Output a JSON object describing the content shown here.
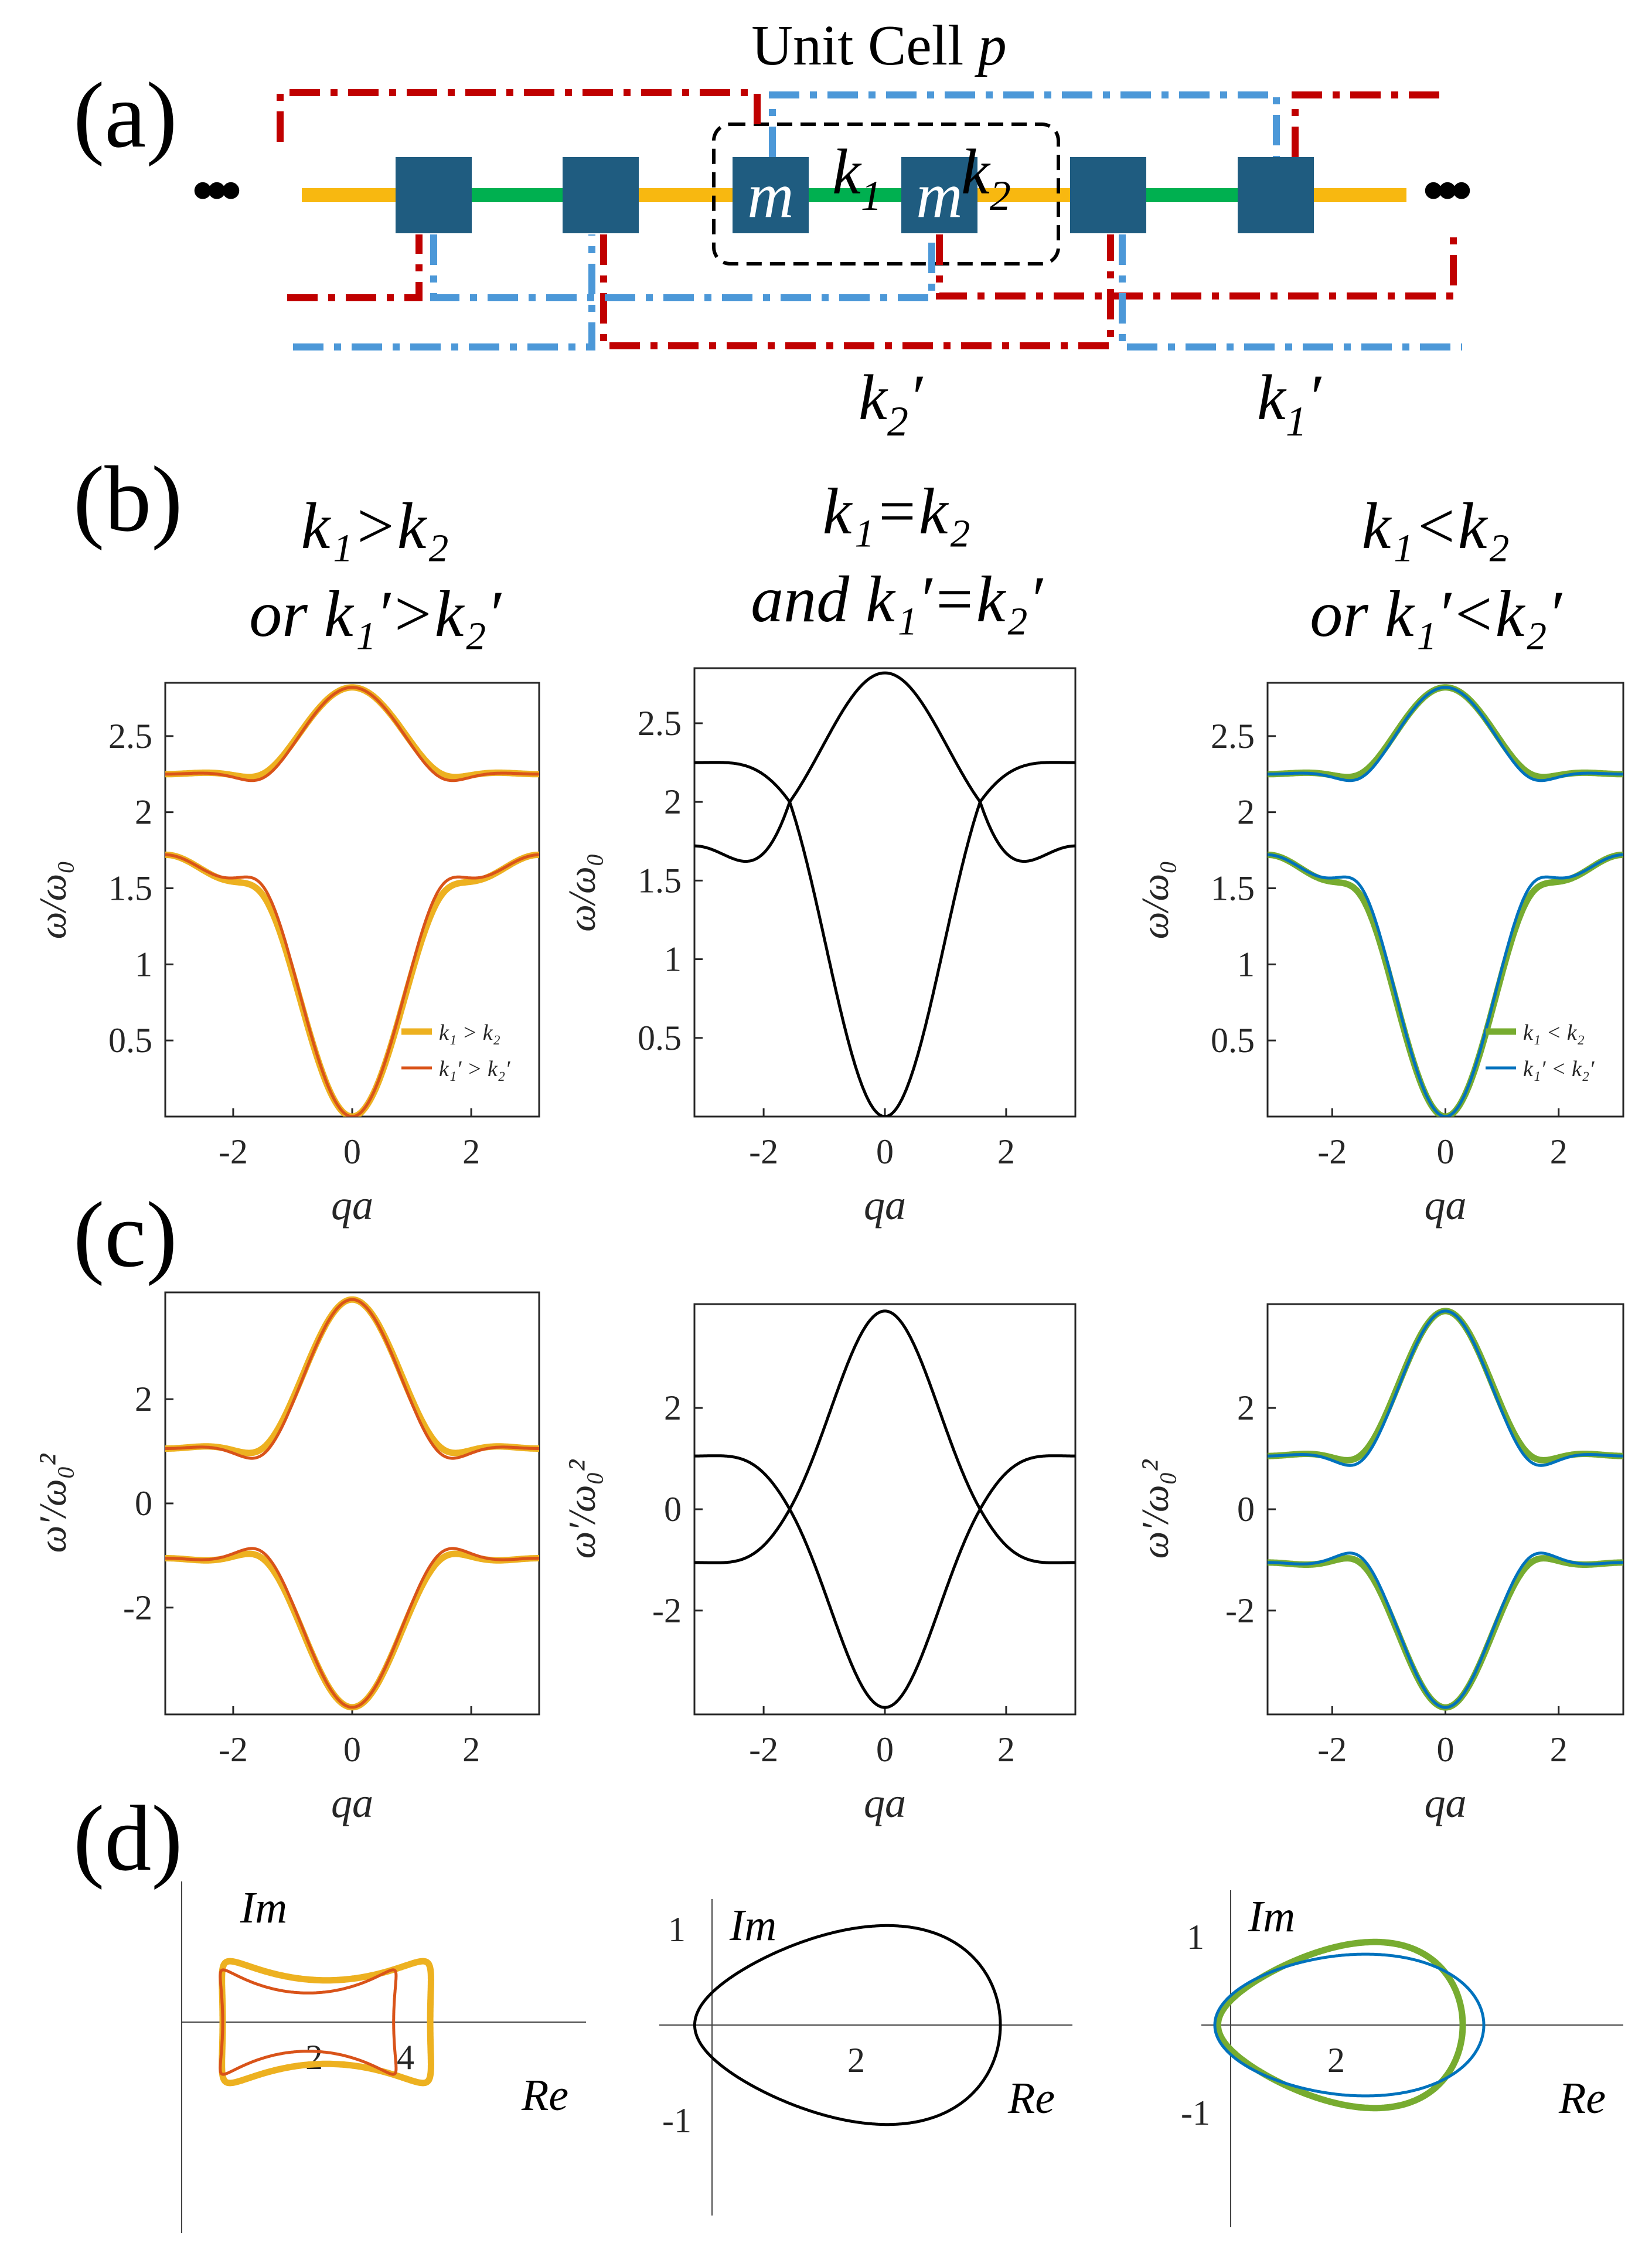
{
  "panel_labels": [
    "(a)",
    "(b)",
    "(c)",
    "(d)"
  ],
  "diagram": {
    "title_text": "Unit Cell ",
    "title_var": "p",
    "mass_label": "m",
    "spring_k1": "k",
    "spring_k1_sub": "1",
    "spring_k2": "k",
    "spring_k2_sub": "2",
    "label_k2p": "k",
    "label_k2p_sub": "2",
    "label_k1p": "k",
    "label_k1p_sub": "1",
    "prime": "′",
    "ellipsis_left": "•••",
    "ellipsis_right": "•••",
    "colors": {
      "spring_k1": "#00b050",
      "spring_k2": "#f8b810",
      "mass": "#1f5c80",
      "box_red": "#c00000",
      "box_blue": "#4c98d8",
      "box_black": "#000000"
    }
  },
  "column_headings": [
    {
      "line1": "k₁>k₂",
      "line2": "or k₁′>k₂′"
    },
    {
      "line1": "k₁=k₂",
      "line2": "and k₁′=k₂′"
    },
    {
      "line1": "k₁<k₂",
      "line2": "or k₁′<k₂′"
    }
  ],
  "colors": {
    "yellow": "#edb120",
    "orange": "#d95319",
    "green": "#77ac30",
    "blue": "#0072bd",
    "black": "#000000"
  },
  "chart_data": [
    {
      "panel": "b-left",
      "type": "line",
      "xlabel": "qa",
      "ylabel": "ω/ω₀",
      "xlim": [
        -3.1416,
        3.1416
      ],
      "ylim": [
        0,
        2.85
      ],
      "xticks": [
        -2,
        0,
        2
      ],
      "yticks": [
        0.5,
        1,
        1.5,
        2,
        2.5
      ],
      "model": "dispersion",
      "grid": false,
      "legend_position": "bottom-right",
      "series": [
        {
          "name": "k₁ > k₂",
          "color": "yellow",
          "width": 11,
          "delta": 0.45
        },
        {
          "name": "k₁′ > k₂′",
          "color": "orange",
          "width": 5,
          "delta": 0.4
        }
      ]
    },
    {
      "panel": "b-mid",
      "type": "line",
      "xlabel": "qa",
      "ylabel": "ω/ω₀",
      "xlim": [
        -3.1416,
        3.1416
      ],
      "ylim": [
        0,
        2.85
      ],
      "xticks": [
        -2,
        0,
        2
      ],
      "yticks": [
        0.5,
        1,
        1.5,
        2,
        2.5
      ],
      "model": "dispersion",
      "grid": false,
      "series": [
        {
          "color": "black",
          "width": 5,
          "delta": 0
        }
      ]
    },
    {
      "panel": "b-right",
      "type": "line",
      "xlabel": "qa",
      "ylabel": "ω/ω₀",
      "xlim": [
        -3.1416,
        3.1416
      ],
      "ylim": [
        0,
        2.85
      ],
      "xticks": [
        -2,
        0,
        2
      ],
      "yticks": [
        0.5,
        1,
        1.5,
        2,
        2.5
      ],
      "model": "dispersion",
      "grid": false,
      "legend_position": "bottom-right",
      "series": [
        {
          "name": "k₁ < k₂",
          "color": "green",
          "width": 11,
          "delta": 0.45
        },
        {
          "name": "k₁′ < k₂′",
          "color": "blue",
          "width": 5,
          "delta": 0.4
        }
      ]
    },
    {
      "panel": "c-left",
      "type": "line",
      "xlabel": "qa",
      "ylabel": "ω′/ω₀²",
      "xlim": [
        -3.1416,
        3.1416
      ],
      "ylim": [
        -4.05,
        4.05
      ],
      "xticks": [
        -2,
        0,
        2
      ],
      "yticks": [
        -2,
        0,
        2
      ],
      "model": "shifted",
      "grid": false,
      "series": [
        {
          "color": "yellow",
          "width": 11,
          "delta": 0.45
        },
        {
          "color": "orange",
          "width": 5,
          "delta": 0.4
        }
      ]
    },
    {
      "panel": "c-mid",
      "type": "line",
      "xlabel": "qa",
      "ylabel": "ω′/ω₀²",
      "xlim": [
        -3.1416,
        3.1416
      ],
      "ylim": [
        -4.05,
        4.05
      ],
      "xticks": [
        -2,
        0,
        2
      ],
      "yticks": [
        -2,
        0,
        2
      ],
      "model": "shifted",
      "grid": false,
      "series": [
        {
          "color": "black",
          "width": 5,
          "delta": 0
        }
      ]
    },
    {
      "panel": "c-right",
      "type": "line",
      "xlabel": "qa",
      "ylabel": "ω′/ω₀²",
      "xlim": [
        -3.1416,
        3.1416
      ],
      "ylim": [
        -4.05,
        4.05
      ],
      "xticks": [
        -2,
        0,
        2
      ],
      "yticks": [
        -2,
        0,
        2
      ],
      "model": "shifted",
      "grid": false,
      "series": [
        {
          "color": "green",
          "width": 11,
          "delta": 0.45
        },
        {
          "color": "blue",
          "width": 5,
          "delta": 0.4
        }
      ]
    },
    {
      "panel": "d-left",
      "type": "line",
      "xlabel": "Re",
      "ylabel": "Im",
      "xticks": [
        2,
        4
      ],
      "yticks": [],
      "model": "loop",
      "series": [
        {
          "color": "yellow",
          "width": 11,
          "r1": 2.62,
          "r2": 2.02,
          "f": 3
        },
        {
          "color": "orange",
          "width": 5,
          "r1": 2.22,
          "r2": 1.62,
          "f": 3
        }
      ]
    },
    {
      "panel": "d-mid",
      "type": "line",
      "xlabel": "Re",
      "ylabel": "Im",
      "xticks": [
        2
      ],
      "yticks": [
        -1,
        1
      ],
      "model": "loop",
      "series": [
        {
          "color": "black",
          "width": 5,
          "r1": 2,
          "r2": 2,
          "f": 1
        }
      ]
    },
    {
      "panel": "d-right",
      "type": "line",
      "xlabel": "Re",
      "ylabel": "Im",
      "xticks": [
        2
      ],
      "yticks": [
        -1,
        1
      ],
      "model": "loop",
      "series": [
        {
          "color": "green",
          "width": 11,
          "r1": 2.2,
          "r2": 1.8,
          "f": 1
        },
        {
          "color": "blue",
          "width": 5,
          "r1": 2.4,
          "r2": 1.6,
          "f": -1
        }
      ]
    }
  ]
}
